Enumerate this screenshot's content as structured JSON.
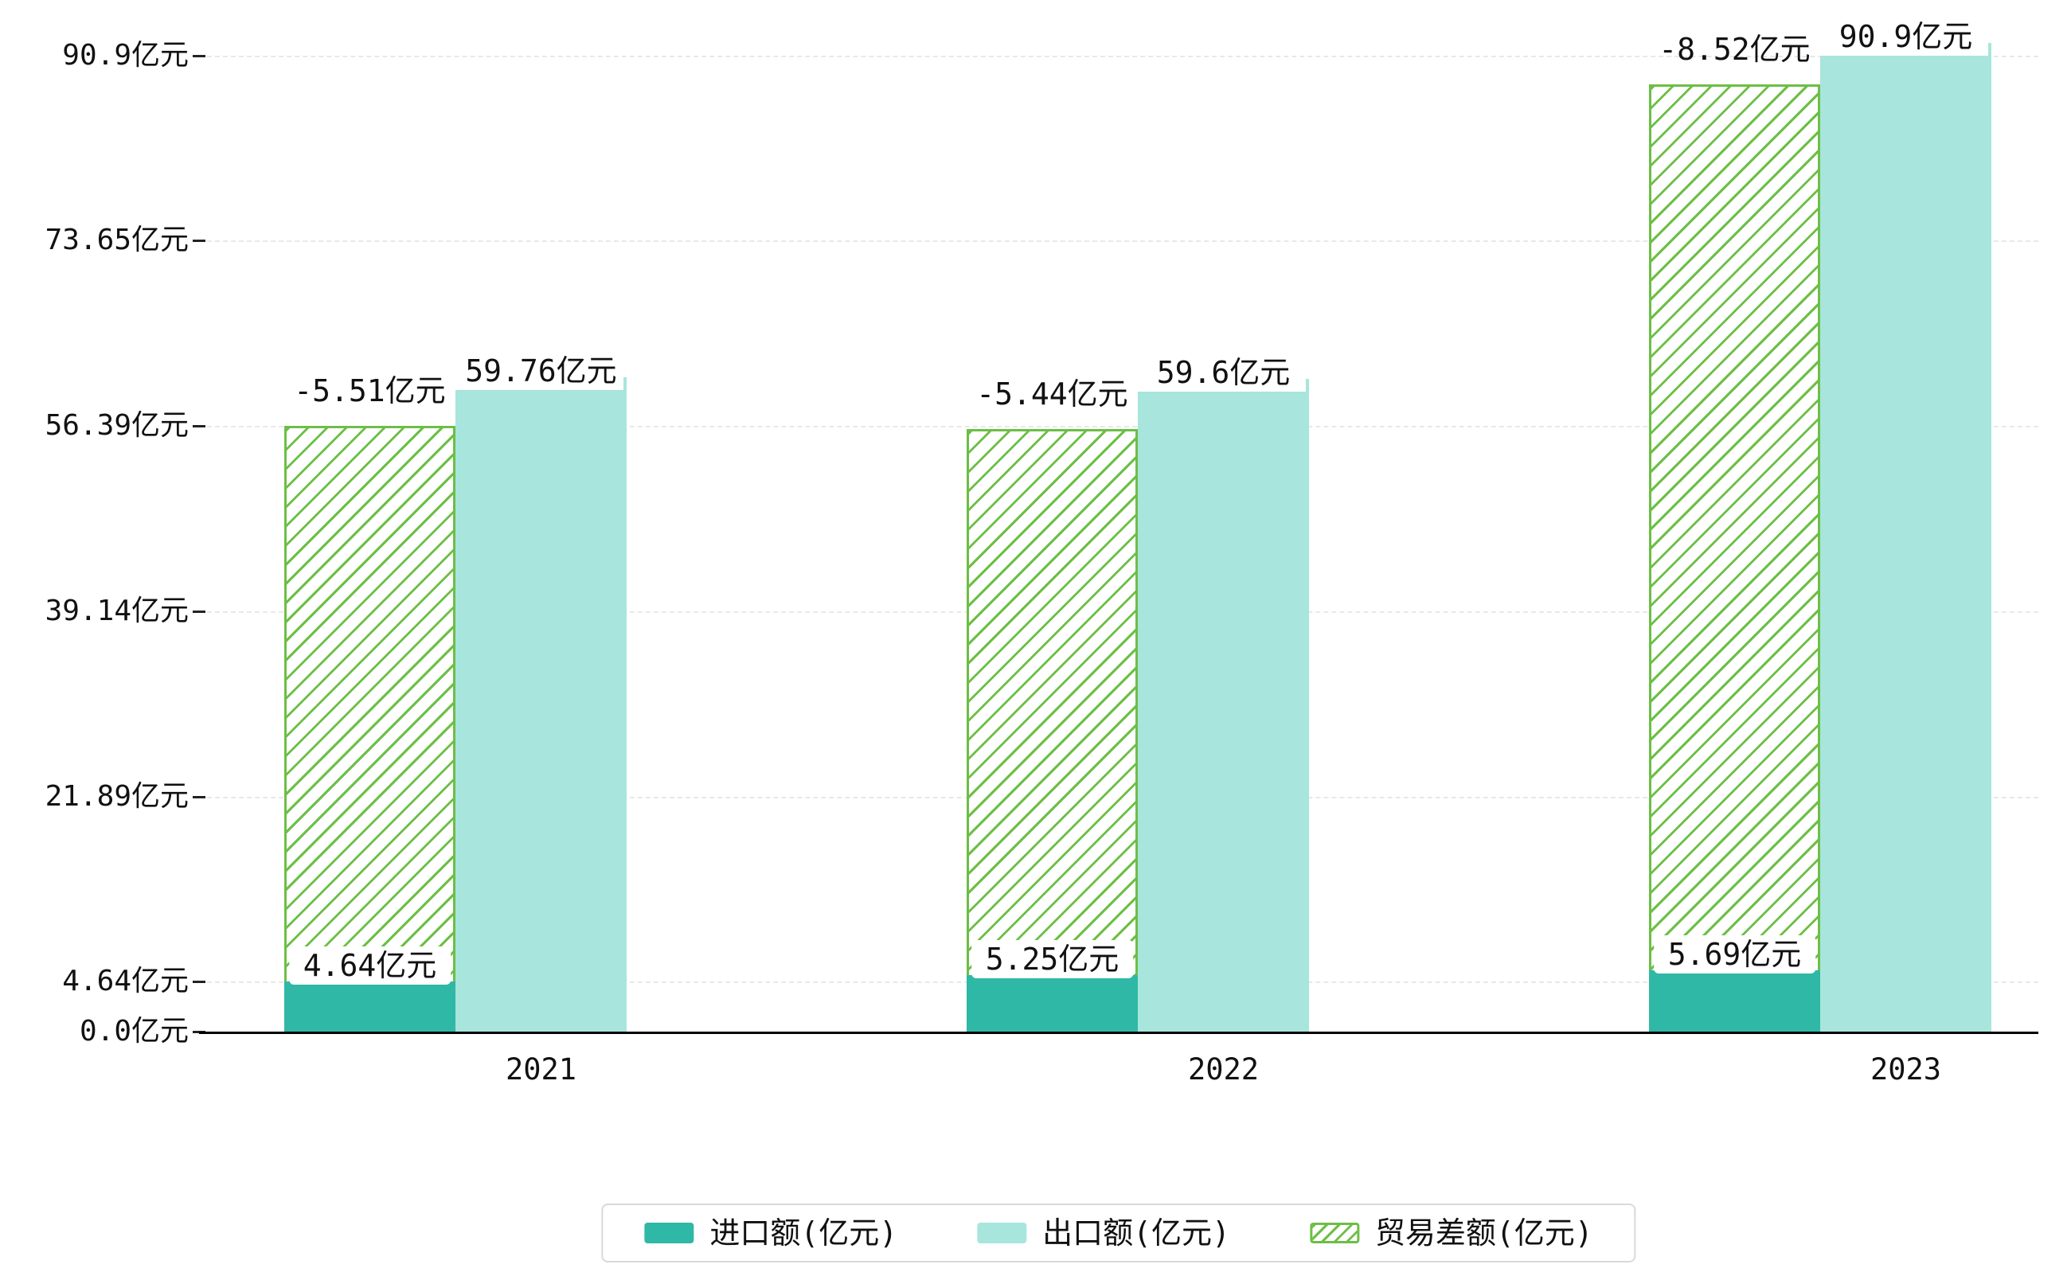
{
  "chart_data": {
    "type": "bar",
    "title": "",
    "categories": [
      "2021",
      "2022",
      "2023"
    ],
    "series": [
      {
        "name": "进口额(亿元)",
        "style": "solid",
        "color": "#2fb8a5",
        "values": [
          4.64,
          5.25,
          5.69
        ],
        "data_labels": [
          "4.64亿元",
          "5.25亿元",
          "5.69亿元"
        ]
      },
      {
        "name": "出口额(亿元)",
        "style": "solid",
        "color": "#a8e5dc",
        "values": [
          59.76,
          59.6,
          90.9
        ],
        "data_labels": [
          "59.76亿元",
          "59.6亿元",
          "90.9亿元"
        ]
      },
      {
        "name": "贸易差额(亿元)",
        "style": "hatched-outline",
        "color": "#6cbf45",
        "values": [
          -5.51,
          -5.44,
          -8.52
        ],
        "data_labels": [
          "-5.51亿元",
          "-5.44亿元",
          "-8.52亿元"
        ],
        "bar_top_values": [
          56.4,
          56.1,
          88.2
        ]
      }
    ],
    "y_axis": {
      "tick_values": [
        0.0,
        4.64,
        21.89,
        39.14,
        56.39,
        73.65,
        90.9
      ],
      "tick_labels": [
        "0.0亿元",
        "4.64亿元",
        "21.89亿元",
        "39.14亿元",
        "56.39亿元",
        "73.65亿元",
        "90.9亿元"
      ],
      "range": [
        0,
        93
      ]
    },
    "x_axis": {
      "labels": [
        "2021",
        "2022",
        "2023"
      ]
    },
    "grid": "dashed-horizontal",
    "legend_position": "bottom-center",
    "background": "#ffffff",
    "text_color": "#111111"
  },
  "legend": {
    "items": [
      {
        "label": "进口额(亿元)",
        "swatch": "solid-teal"
      },
      {
        "label": "出口额(亿元)",
        "swatch": "solid-light-teal"
      },
      {
        "label": "贸易差额(亿元)",
        "swatch": "hatched-green"
      }
    ]
  }
}
